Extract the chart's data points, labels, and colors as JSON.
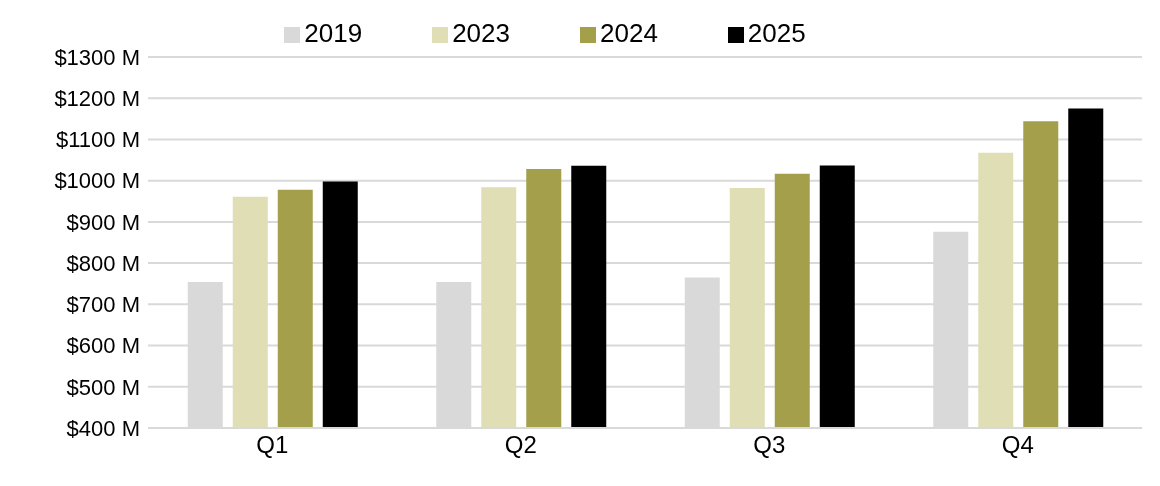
{
  "chart_data": {
    "type": "bar",
    "categories": [
      "Q1",
      "Q2",
      "Q3",
      "Q4"
    ],
    "series": [
      {
        "name": "2019",
        "color": "#d9d9d9",
        "values": [
          754,
          754,
          765,
          876
        ]
      },
      {
        "name": "2023",
        "color": "#dfdeb4",
        "values": [
          961,
          984,
          982,
          1068
        ]
      },
      {
        "name": "2024",
        "color": "#a39f4a",
        "values": [
          978,
          1028,
          1017,
          1144
        ]
      },
      {
        "name": "2025",
        "color": "#000000",
        "values": [
          998,
          1036,
          1037,
          1175
        ]
      }
    ],
    "ylim": [
      400,
      1300
    ],
    "yticks": [
      {
        "value": 400,
        "label": "$400 M"
      },
      {
        "value": 500,
        "label": "$500 M"
      },
      {
        "value": 600,
        "label": "$600 M"
      },
      {
        "value": 700,
        "label": "$700 M"
      },
      {
        "value": 800,
        "label": "$800 M"
      },
      {
        "value": 900,
        "label": "$900 M"
      },
      {
        "value": 1000,
        "label": "$1000 M"
      },
      {
        "value": 1100,
        "label": "$1100 M"
      },
      {
        "value": 1200,
        "label": "$1200 M"
      },
      {
        "value": 1300,
        "label": "$1300 M"
      }
    ],
    "grid": "y",
    "legend": "top"
  }
}
